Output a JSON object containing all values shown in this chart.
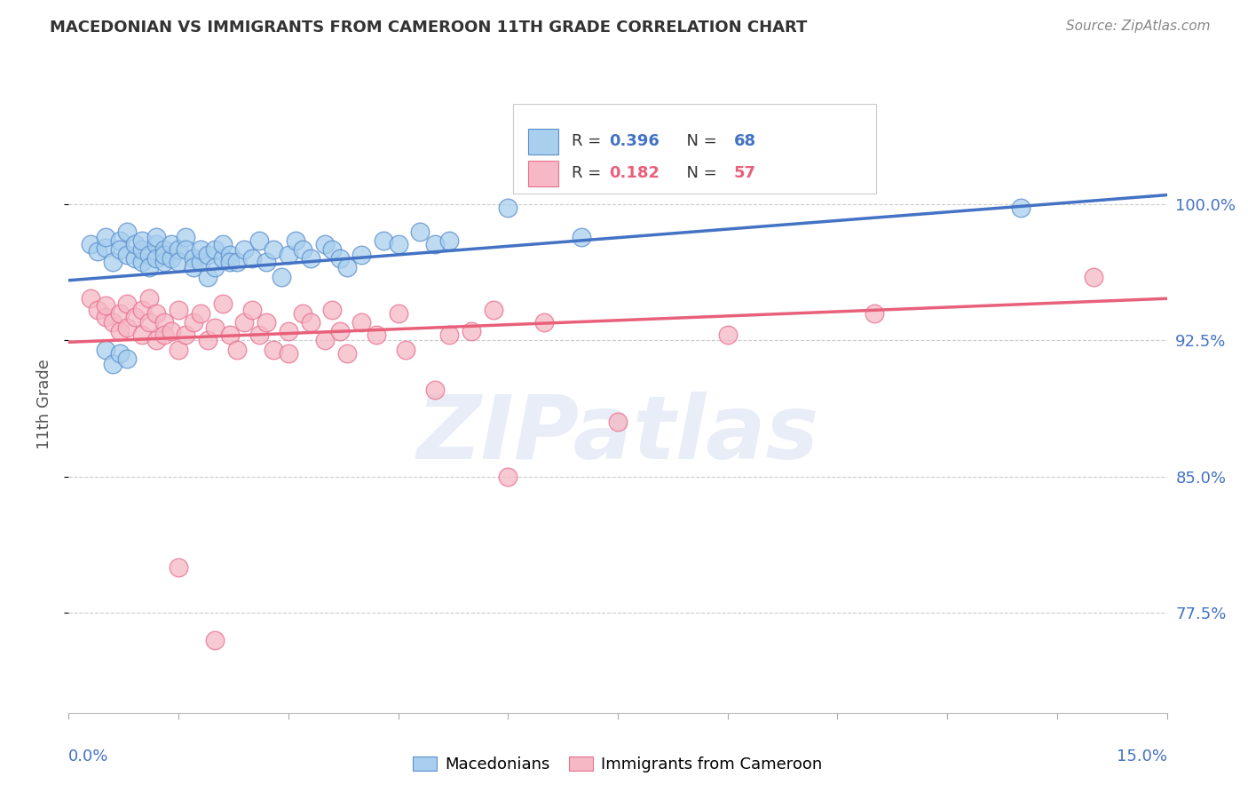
{
  "title": "MACEDONIAN VS IMMIGRANTS FROM CAMEROON 11TH GRADE CORRELATION CHART",
  "source": "Source: ZipAtlas.com",
  "ylabel": "11th Grade",
  "y_tick_labels": [
    "100.0%",
    "92.5%",
    "85.0%",
    "77.5%"
  ],
  "y_tick_values": [
    1.0,
    0.925,
    0.85,
    0.775
  ],
  "x_range": [
    0.0,
    0.15
  ],
  "y_range": [
    0.72,
    1.06
  ],
  "blue_color": "#A8CFEE",
  "pink_color": "#F5B8C4",
  "blue_edge_color": "#5B8FCC",
  "pink_edge_color": "#E87090",
  "blue_line_color": "#4472C4",
  "pink_line_color": "#E8607A",
  "blue_scatter": [
    [
      0.003,
      0.978
    ],
    [
      0.004,
      0.974
    ],
    [
      0.005,
      0.976
    ],
    [
      0.005,
      0.982
    ],
    [
      0.006,
      0.968
    ],
    [
      0.007,
      0.98
    ],
    [
      0.007,
      0.975
    ],
    [
      0.008,
      0.985
    ],
    [
      0.008,
      0.972
    ],
    [
      0.009,
      0.97
    ],
    [
      0.009,
      0.978
    ],
    [
      0.01,
      0.968
    ],
    [
      0.01,
      0.975
    ],
    [
      0.01,
      0.98
    ],
    [
      0.011,
      0.972
    ],
    [
      0.011,
      0.965
    ],
    [
      0.012,
      0.978
    ],
    [
      0.012,
      0.982
    ],
    [
      0.012,
      0.97
    ],
    [
      0.013,
      0.975
    ],
    [
      0.013,
      0.968
    ],
    [
      0.013,
      0.972
    ],
    [
      0.014,
      0.97
    ],
    [
      0.014,
      0.978
    ],
    [
      0.015,
      0.975
    ],
    [
      0.015,
      0.968
    ],
    [
      0.016,
      0.982
    ],
    [
      0.016,
      0.975
    ],
    [
      0.017,
      0.97
    ],
    [
      0.017,
      0.965
    ],
    [
      0.018,
      0.968
    ],
    [
      0.018,
      0.975
    ],
    [
      0.019,
      0.96
    ],
    [
      0.019,
      0.972
    ],
    [
      0.02,
      0.975
    ],
    [
      0.02,
      0.965
    ],
    [
      0.021,
      0.97
    ],
    [
      0.021,
      0.978
    ],
    [
      0.022,
      0.972
    ],
    [
      0.022,
      0.968
    ],
    [
      0.023,
      0.968
    ],
    [
      0.024,
      0.975
    ],
    [
      0.025,
      0.97
    ],
    [
      0.026,
      0.98
    ],
    [
      0.027,
      0.968
    ],
    [
      0.028,
      0.975
    ],
    [
      0.029,
      0.96
    ],
    [
      0.03,
      0.972
    ],
    [
      0.031,
      0.98
    ],
    [
      0.032,
      0.975
    ],
    [
      0.033,
      0.97
    ],
    [
      0.035,
      0.978
    ],
    [
      0.036,
      0.975
    ],
    [
      0.037,
      0.97
    ],
    [
      0.038,
      0.965
    ],
    [
      0.04,
      0.972
    ],
    [
      0.043,
      0.98
    ],
    [
      0.045,
      0.978
    ],
    [
      0.048,
      0.985
    ],
    [
      0.05,
      0.978
    ],
    [
      0.052,
      0.98
    ],
    [
      0.06,
      0.998
    ],
    [
      0.07,
      0.982
    ],
    [
      0.13,
      0.998
    ],
    [
      0.005,
      0.92
    ],
    [
      0.006,
      0.912
    ],
    [
      0.007,
      0.918
    ],
    [
      0.008,
      0.915
    ]
  ],
  "pink_scatter": [
    [
      0.003,
      0.948
    ],
    [
      0.004,
      0.942
    ],
    [
      0.005,
      0.938
    ],
    [
      0.005,
      0.944
    ],
    [
      0.006,
      0.935
    ],
    [
      0.007,
      0.93
    ],
    [
      0.007,
      0.94
    ],
    [
      0.008,
      0.945
    ],
    [
      0.008,
      0.932
    ],
    [
      0.009,
      0.938
    ],
    [
      0.01,
      0.942
    ],
    [
      0.01,
      0.928
    ],
    [
      0.011,
      0.935
    ],
    [
      0.011,
      0.948
    ],
    [
      0.012,
      0.925
    ],
    [
      0.012,
      0.94
    ],
    [
      0.013,
      0.935
    ],
    [
      0.013,
      0.928
    ],
    [
      0.014,
      0.93
    ],
    [
      0.015,
      0.92
    ],
    [
      0.015,
      0.942
    ],
    [
      0.016,
      0.928
    ],
    [
      0.017,
      0.935
    ],
    [
      0.018,
      0.94
    ],
    [
      0.019,
      0.925
    ],
    [
      0.02,
      0.932
    ],
    [
      0.021,
      0.945
    ],
    [
      0.022,
      0.928
    ],
    [
      0.023,
      0.92
    ],
    [
      0.024,
      0.935
    ],
    [
      0.025,
      0.942
    ],
    [
      0.026,
      0.928
    ],
    [
      0.027,
      0.935
    ],
    [
      0.028,
      0.92
    ],
    [
      0.03,
      0.93
    ],
    [
      0.03,
      0.918
    ],
    [
      0.032,
      0.94
    ],
    [
      0.033,
      0.935
    ],
    [
      0.035,
      0.925
    ],
    [
      0.036,
      0.942
    ],
    [
      0.037,
      0.93
    ],
    [
      0.038,
      0.918
    ],
    [
      0.04,
      0.935
    ],
    [
      0.042,
      0.928
    ],
    [
      0.045,
      0.94
    ],
    [
      0.046,
      0.92
    ],
    [
      0.05,
      0.898
    ],
    [
      0.052,
      0.928
    ],
    [
      0.055,
      0.93
    ],
    [
      0.058,
      0.942
    ],
    [
      0.06,
      0.85
    ],
    [
      0.065,
      0.935
    ],
    [
      0.075,
      0.88
    ],
    [
      0.09,
      0.928
    ],
    [
      0.11,
      0.94
    ],
    [
      0.14,
      0.96
    ],
    [
      0.015,
      0.8
    ],
    [
      0.02,
      0.76
    ]
  ],
  "blue_line_x": [
    0.0,
    0.15
  ],
  "blue_line_y": [
    0.958,
    1.005
  ],
  "pink_line_x": [
    0.0,
    0.15
  ],
  "pink_line_y": [
    0.924,
    0.948
  ],
  "watermark_text": "ZIPatlas",
  "background_color": "#ffffff",
  "grid_color": "#cccccc",
  "title_color": "#333333",
  "right_axis_color": "#4472C4",
  "bottom_label_color": "#4472C4"
}
